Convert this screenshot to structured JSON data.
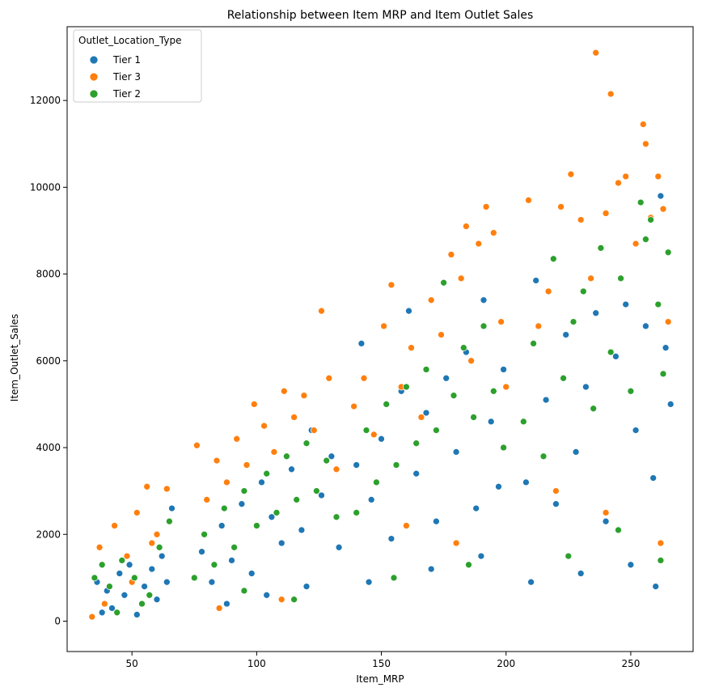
{
  "chart_data": {
    "type": "scatter",
    "title": "Relationship between Item MRP and Item Outlet Sales",
    "xlabel": "Item_MRP",
    "ylabel": "Item_Outlet_Sales",
    "xlim": [
      24,
      275
    ],
    "ylim": [
      -700,
      13700
    ],
    "xticks": [
      50,
      100,
      150,
      200,
      250
    ],
    "yticks": [
      0,
      2000,
      4000,
      6000,
      8000,
      10000,
      12000
    ],
    "grid": false,
    "legend": {
      "title": "Outlet_Location_Type",
      "placement": "top-left"
    },
    "series": [
      {
        "name": "Tier 1",
        "color": "#1f77b4",
        "points": [
          [
            36,
            900
          ],
          [
            40,
            700
          ],
          [
            45,
            1100
          ],
          [
            49,
            1300
          ],
          [
            55,
            800
          ],
          [
            60,
            500
          ],
          [
            64,
            900
          ],
          [
            42,
            300
          ],
          [
            52,
            150
          ],
          [
            58,
            1200
          ],
          [
            38,
            200
          ],
          [
            47,
            600
          ],
          [
            62,
            1500
          ],
          [
            66,
            2600
          ],
          [
            78,
            1600
          ],
          [
            82,
            900
          ],
          [
            86,
            2200
          ],
          [
            90,
            1400
          ],
          [
            94,
            2700
          ],
          [
            98,
            1100
          ],
          [
            102,
            3200
          ],
          [
            106,
            2400
          ],
          [
            110,
            1800
          ],
          [
            114,
            3500
          ],
          [
            118,
            2100
          ],
          [
            122,
            4400
          ],
          [
            126,
            2900
          ],
          [
            130,
            3800
          ],
          [
            133,
            1700
          ],
          [
            88,
            400
          ],
          [
            104,
            600
          ],
          [
            120,
            800
          ],
          [
            140,
            3600
          ],
          [
            142,
            6400
          ],
          [
            146,
            2800
          ],
          [
            150,
            4200
          ],
          [
            154,
            1900
          ],
          [
            158,
            5300
          ],
          [
            161,
            7150
          ],
          [
            164,
            3400
          ],
          [
            168,
            4800
          ],
          [
            172,
            2300
          ],
          [
            176,
            5600
          ],
          [
            180,
            3900
          ],
          [
            184,
            6200
          ],
          [
            188,
            2600
          ],
          [
            191,
            7400
          ],
          [
            194,
            4600
          ],
          [
            197,
            3100
          ],
          [
            199,
            5800
          ],
          [
            145,
            900
          ],
          [
            170,
            1200
          ],
          [
            190,
            1500
          ],
          [
            208,
            3200
          ],
          [
            212,
            7850
          ],
          [
            216,
            5100
          ],
          [
            220,
            2700
          ],
          [
            224,
            6600
          ],
          [
            228,
            3900
          ],
          [
            232,
            5400
          ],
          [
            236,
            7100
          ],
          [
            240,
            2300
          ],
          [
            244,
            6100
          ],
          [
            248,
            7300
          ],
          [
            252,
            4400
          ],
          [
            256,
            6800
          ],
          [
            259,
            3300
          ],
          [
            262,
            9800
          ],
          [
            264,
            6300
          ],
          [
            266,
            5000
          ],
          [
            210,
            900
          ],
          [
            230,
            1100
          ],
          [
            250,
            1300
          ],
          [
            260,
            800
          ]
        ]
      },
      {
        "name": "Tier 3",
        "color": "#ff7f0e",
        "points": [
          [
            37,
            1700
          ],
          [
            43,
            2200
          ],
          [
            48,
            1500
          ],
          [
            52,
            2500
          ],
          [
            56,
            3100
          ],
          [
            60,
            2000
          ],
          [
            64,
            3050
          ],
          [
            39,
            400
          ],
          [
            50,
            900
          ],
          [
            58,
            1800
          ],
          [
            34,
            100
          ],
          [
            76,
            4050
          ],
          [
            80,
            2800
          ],
          [
            84,
            3700
          ],
          [
            88,
            3200
          ],
          [
            92,
            4200
          ],
          [
            96,
            3600
          ],
          [
            99,
            5000
          ],
          [
            103,
            4500
          ],
          [
            107,
            3900
          ],
          [
            111,
            5300
          ],
          [
            115,
            4700
          ],
          [
            119,
            5200
          ],
          [
            123,
            4400
          ],
          [
            126,
            7150
          ],
          [
            129,
            5600
          ],
          [
            132,
            3500
          ],
          [
            85,
            300
          ],
          [
            110,
            500
          ],
          [
            139,
            4950
          ],
          [
            143,
            5600
          ],
          [
            147,
            4300
          ],
          [
            151,
            6800
          ],
          [
            154,
            7750
          ],
          [
            158,
            5400
          ],
          [
            162,
            6300
          ],
          [
            166,
            4700
          ],
          [
            170,
            7400
          ],
          [
            174,
            6600
          ],
          [
            178,
            8450
          ],
          [
            182,
            7900
          ],
          [
            184,
            9100
          ],
          [
            186,
            6000
          ],
          [
            189,
            8700
          ],
          [
            192,
            9550
          ],
          [
            195,
            8950
          ],
          [
            198,
            6900
          ],
          [
            200,
            5400
          ],
          [
            160,
            2200
          ],
          [
            180,
            1800
          ],
          [
            209,
            9700
          ],
          [
            213,
            6800
          ],
          [
            217,
            7600
          ],
          [
            222,
            9550
          ],
          [
            226,
            10300
          ],
          [
            230,
            9250
          ],
          [
            234,
            7900
          ],
          [
            236,
            13100
          ],
          [
            240,
            9400
          ],
          [
            242,
            12150
          ],
          [
            245,
            10100
          ],
          [
            248,
            10250
          ],
          [
            252,
            8700
          ],
          [
            255,
            11450
          ],
          [
            256,
            11000
          ],
          [
            258,
            9300
          ],
          [
            261,
            10250
          ],
          [
            263,
            9500
          ],
          [
            265,
            6900
          ],
          [
            220,
            3000
          ],
          [
            240,
            2500
          ],
          [
            262,
            1800
          ]
        ]
      },
      {
        "name": "Tier 2",
        "color": "#2ca02c",
        "points": [
          [
            35,
            1000
          ],
          [
            41,
            800
          ],
          [
            46,
            1400
          ],
          [
            51,
            1000
          ],
          [
            57,
            600
          ],
          [
            61,
            1700
          ],
          [
            65,
            2300
          ],
          [
            44,
            200
          ],
          [
            54,
            400
          ],
          [
            38,
            1300
          ],
          [
            75,
            1000
          ],
          [
            79,
            2000
          ],
          [
            83,
            1300
          ],
          [
            87,
            2600
          ],
          [
            91,
            1700
          ],
          [
            95,
            3000
          ],
          [
            100,
            2200
          ],
          [
            104,
            3400
          ],
          [
            108,
            2500
          ],
          [
            112,
            3800
          ],
          [
            116,
            2800
          ],
          [
            120,
            4100
          ],
          [
            124,
            3000
          ],
          [
            128,
            3700
          ],
          [
            132,
            2400
          ],
          [
            95,
            700
          ],
          [
            115,
            500
          ],
          [
            140,
            2500
          ],
          [
            144,
            4400
          ],
          [
            148,
            3200
          ],
          [
            152,
            5000
          ],
          [
            156,
            3600
          ],
          [
            160,
            5400
          ],
          [
            164,
            4100
          ],
          [
            168,
            5800
          ],
          [
            172,
            4400
          ],
          [
            175,
            7800
          ],
          [
            179,
            5200
          ],
          [
            183,
            6300
          ],
          [
            187,
            4700
          ],
          [
            191,
            6800
          ],
          [
            195,
            5300
          ],
          [
            199,
            4000
          ],
          [
            155,
            1000
          ],
          [
            185,
            1300
          ],
          [
            207,
            4600
          ],
          [
            211,
            6400
          ],
          [
            215,
            3800
          ],
          [
            219,
            8350
          ],
          [
            223,
            5600
          ],
          [
            227,
            6900
          ],
          [
            231,
            7600
          ],
          [
            235,
            4900
          ],
          [
            238,
            8600
          ],
          [
            242,
            6200
          ],
          [
            246,
            7900
          ],
          [
            250,
            5300
          ],
          [
            254,
            9650
          ],
          [
            256,
            8800
          ],
          [
            258,
            9250
          ],
          [
            261,
            7300
          ],
          [
            263,
            5700
          ],
          [
            265,
            8500
          ],
          [
            225,
            1500
          ],
          [
            245,
            2100
          ],
          [
            262,
            1400
          ]
        ]
      }
    ]
  }
}
